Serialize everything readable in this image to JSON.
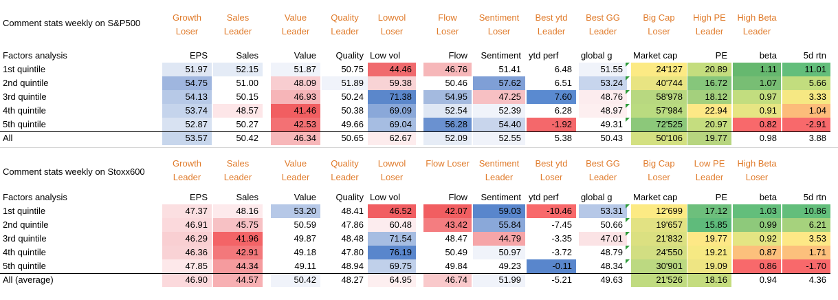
{
  "tables": [
    {
      "title": "Comment stats weekly on S&P500",
      "headers": [
        [
          "Growth",
          "Loser"
        ],
        [
          "Sales",
          "Leader"
        ],
        [
          "Value",
          "Leader"
        ],
        [
          "Quality",
          "Leader"
        ],
        [
          "Lowvol",
          "Loser"
        ],
        [
          "Flow",
          "Loser"
        ],
        [
          "Sentiment",
          "Loser"
        ],
        [
          "Best ytd",
          "Leader"
        ],
        [
          "Best GG",
          "Leader"
        ],
        [
          "Big Cap",
          "Loser"
        ],
        [
          "High PE",
          "Leader"
        ],
        [
          "High Beta",
          "Leader"
        ],
        [
          "",
          ""
        ]
      ],
      "row_header": "Factors analysis",
      "columns": [
        "EPS",
        "Sales",
        "Value",
        "Quality",
        "Low vol",
        "Flow",
        "Sentiment",
        "ytd perf",
        "global g",
        "Market cap",
        "PE",
        "beta",
        "5d rtn"
      ],
      "rows": [
        {
          "label": "1st quintile",
          "values": [
            "51.97",
            "52.15",
            "51.87",
            "50.75",
            "44.46",
            "46.76",
            "51.41",
            "6.48",
            "51.55",
            "24'127",
            "20.89",
            "1.11",
            "11.01"
          ],
          "colors": [
            "#dfe7f4",
            "#e4ebf6",
            "#f0f3fa",
            "#ffffff",
            "#f06a6d",
            "#f6b7b9",
            "#ffffff",
            "#ffffff",
            "#f0f3fa",
            "#fcea84",
            "#c4dd7e",
            "#66b86f",
            "#63be7b"
          ]
        },
        {
          "label": "2nd quintile",
          "values": [
            "54.75",
            "51.00",
            "48.09",
            "51.89",
            "59.38",
            "50.46",
            "57.62",
            "6.51",
            "53.24",
            "40'744",
            "16.72",
            "1.07",
            "5.66"
          ],
          "colors": [
            "#9fb6df",
            "#ffffff",
            "#f8cdd0",
            "#f0f3fa",
            "#f8d3d5",
            "#ffffff",
            "#7f9fd6",
            "#ffffff",
            "#c7d5ed",
            "#e8e482",
            "#86c67b",
            "#78be74",
            "#c2dd7e"
          ]
        },
        {
          "label": "3rd quintile",
          "values": [
            "54.13",
            "50.15",
            "46.93",
            "50.24",
            "71.38",
            "54.95",
            "47.25",
            "7.60",
            "48.76",
            "58'978",
            "18.12",
            "0.97",
            "3.33"
          ],
          "colors": [
            "#b7c9e7",
            "#ffffff",
            "#f6b5b8",
            "#ffffff",
            "#5b87cb",
            "#a4badf",
            "#f7c0c3",
            "#5a8ad0",
            "#fcecee",
            "#b8d880",
            "#a4d07d",
            "#c2dd7f",
            "#f6e883"
          ]
        },
        {
          "label": "4th quintile",
          "values": [
            "53.74",
            "48.57",
            "41.46",
            "50.38",
            "69.09",
            "52.54",
            "52.39",
            "6.28",
            "48.97",
            "57'984",
            "22.94",
            "0.91",
            "1.04"
          ],
          "colors": [
            "#c5d4ec",
            "#fde6e8",
            "#f15e61",
            "#ffffff",
            "#8aa8d9",
            "#dfe7f4",
            "#f0f3fa",
            "#ffffff",
            "#fdeff0",
            "#badb80",
            "#fde886",
            "#e6e583",
            "#fcbc7a"
          ]
        },
        {
          "label": "5th quintile",
          "values": [
            "52.87",
            "50.27",
            "42.53",
            "49.66",
            "69.04",
            "56.28",
            "54.40",
            "-1.92",
            "49.31",
            "72'525",
            "20.97",
            "0.82",
            "-2.91"
          ],
          "colors": [
            "#d8e2f2",
            "#ffffff",
            "#f37174",
            "#ffffff",
            "#a6bde2",
            "#6a91d0",
            "#c8d5ec",
            "#f4686b",
            "#ffffff",
            "#8cc87a",
            "#c5dd7f",
            "#f8696b",
            "#f8696b"
          ]
        },
        {
          "label": "All",
          "values": [
            "53.57",
            "50.42",
            "46.34",
            "50.65",
            "62.67",
            "52.09",
            "52.55",
            "5.38",
            "50.43",
            "50'106",
            "19.77",
            "0.98",
            "3.88"
          ],
          "colors": [
            "#c7d6ec",
            "#ffffff",
            "#f7b7b9",
            "#ffffff",
            "#fdeced",
            "#e6ecf6",
            "#f0f3fa",
            "#ffffff",
            "#ffffff",
            "#d3e081",
            "#b7d57f",
            "#ffffff",
            "#ffffff"
          ]
        }
      ]
    },
    {
      "title": "Comment stats weekly on Stoxx600",
      "headers": [
        [
          "Growth",
          "Leader"
        ],
        [
          "Sales",
          "Leader"
        ],
        [
          "Value",
          "Leader"
        ],
        [
          "Quality",
          "Leader"
        ],
        [
          "Lowvol",
          "Loser"
        ],
        [
          "Flow Loser",
          ""
        ],
        [
          "Sentiment",
          "Leader"
        ],
        [
          "Best ytd",
          "Loser"
        ],
        [
          "Best GG",
          "Leader"
        ],
        [
          "Big Cap",
          "Loser"
        ],
        [
          "Low PE",
          "Leader"
        ],
        [
          "High Beta",
          "Loser"
        ],
        [
          "",
          ""
        ]
      ],
      "row_header": "Factors analysis",
      "columns": [
        "EPS",
        "Sales",
        "Value",
        "Quality",
        "Low vol",
        "Flow",
        "Sentiment",
        "ytd perf",
        "global g",
        "Market cap",
        "PE",
        "beta",
        "5d rtn"
      ],
      "rows": [
        {
          "label": "1st quintile",
          "values": [
            "47.37",
            "48.16",
            "53.20",
            "48.41",
            "46.52",
            "42.07",
            "59.03",
            "-10.46",
            "53.31",
            "12'699",
            "17.12",
            "1.03",
            "10.86"
          ],
          "colors": [
            "#fbdfe1",
            "#fdeaec",
            "#b6c8e7",
            "#ffffff",
            "#f15e62",
            "#f15e61",
            "#5986cc",
            "#f8696b",
            "#b6c8e7",
            "#fcea84",
            "#6dbf7c",
            "#63be7b",
            "#63be7b"
          ]
        },
        {
          "label": "2nd quintile",
          "values": [
            "46.91",
            "45.75",
            "50.59",
            "47.86",
            "60.48",
            "43.42",
            "55.84",
            "-7.45",
            "50.66",
            "19'657",
            "15.85",
            "0.99",
            "6.21"
          ],
          "colors": [
            "#fbd9dc",
            "#f7c1c4",
            "#ffffff",
            "#ffffff",
            "#fcecee",
            "#f47d80",
            "#8aa8d9",
            "#ffffff",
            "#ffffff",
            "#e2e283",
            "#5fbb7b",
            "#8ec97b",
            "#a6d27d"
          ]
        },
        {
          "label": "3rd quintile",
          "values": [
            "46.29",
            "41.96",
            "49.87",
            "48.48",
            "71.54",
            "48.47",
            "44.79",
            "-3.35",
            "47.01",
            "21'832",
            "19.77",
            "0.92",
            "3.53"
          ],
          "colors": [
            "#f9cfd2",
            "#f36467",
            "#ffffff",
            "#ffffff",
            "#a6bde2",
            "#ffffff",
            "#f6a5a8",
            "#ffffff",
            "#fbe3e5",
            "#dbe081",
            "#fde886",
            "#e4e583",
            "#fde886"
          ]
        },
        {
          "label": "4th quintile",
          "values": [
            "46.36",
            "42.91",
            "49.18",
            "47.80",
            "76.19",
            "50.49",
            "50.97",
            "-3.72",
            "48.79",
            "24'550",
            "19.21",
            "0.87",
            "1.71"
          ],
          "colors": [
            "#f9d2d5",
            "#f3787b",
            "#ffffff",
            "#ffffff",
            "#5986cc",
            "#ffffff",
            "#f0f3fa",
            "#ffffff",
            "#ffffff",
            "#d2de82",
            "#f6e983",
            "#fcc07c",
            "#fcc07c"
          ]
        },
        {
          "label": "5th quintile",
          "values": [
            "47.85",
            "44.34",
            "49.11",
            "48.94",
            "69.75",
            "49.84",
            "49.23",
            "-0.11",
            "48.34",
            "30'901",
            "19.09",
            "0.86",
            "-1.70"
          ],
          "colors": [
            "#fde8ea",
            "#f59b9e",
            "#ffffff",
            "#ffffff",
            "#c0d0ea",
            "#ffffff",
            "#ffffff",
            "#5986cc",
            "#ffffff",
            "#bcd981",
            "#eee583",
            "#f8696b",
            "#f8696b"
          ]
        },
        {
          "label": "All (average)",
          "values": [
            "46.90",
            "44.57",
            "50.42",
            "48.27",
            "64.95",
            "46.74",
            "51.99",
            "-5.21",
            "49.63",
            "21'526",
            "18.16",
            "0.94",
            "4.36"
          ],
          "colors": [
            "#fbd9dc",
            "#f7b0b3",
            "#f0f3fa",
            "#ffffff",
            "#fdeff0",
            "#f9c9cb",
            "#f0f3fa",
            "#ffffff",
            "#ffffff",
            "#c0db80",
            "#c4dc7e",
            "#ffffff",
            "#ffffff"
          ]
        }
      ]
    }
  ]
}
